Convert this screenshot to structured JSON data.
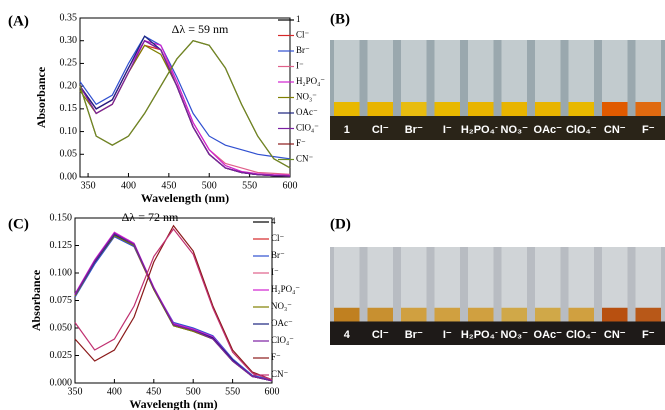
{
  "chart_data": [
    {
      "type": "line",
      "panel_label": "(A)",
      "annotation": "Δλ = 59 nm",
      "x_label": "Wavelength (nm)",
      "y_label": "Absorbance",
      "x": [
        340,
        360,
        380,
        400,
        420,
        440,
        460,
        480,
        500,
        520,
        540,
        560,
        580,
        600
      ],
      "xlim": [
        340,
        600
      ],
      "xticks": [
        350,
        400,
        450,
        500,
        550,
        600
      ],
      "ylim": [
        0,
        0.35
      ],
      "yticks": [
        {
          "value": 0,
          "label": "0.00"
        },
        {
          "value": 0.05,
          "label": "0.05"
        },
        {
          "value": 0.1,
          "label": "0.10"
        },
        {
          "value": 0.15,
          "label": "0.15"
        },
        {
          "value": 0.2,
          "label": "0.20"
        },
        {
          "value": 0.25,
          "label": "0.25"
        },
        {
          "value": 0.3,
          "label": "0.30"
        },
        {
          "value": 0.35,
          "label": "0.35"
        }
      ],
      "series": [
        {
          "name": "1",
          "color": "#000000",
          "values": [
            0.2,
            0.15,
            0.17,
            0.24,
            0.3,
            0.28,
            0.2,
            0.11,
            0.05,
            0.02,
            0.01,
            0.005,
            0.003,
            0.002
          ]
        },
        {
          "name": "Cl⁻",
          "color": "#d62728",
          "values": [
            0.2,
            0.14,
            0.16,
            0.23,
            0.29,
            0.28,
            0.2,
            0.11,
            0.05,
            0.02,
            0.01,
            0.006,
            0.004,
            0.003
          ]
        },
        {
          "name": "Br⁻",
          "color": "#3050d0",
          "values": [
            0.21,
            0.16,
            0.18,
            0.25,
            0.31,
            0.29,
            0.22,
            0.14,
            0.09,
            0.07,
            0.06,
            0.05,
            0.045,
            0.04
          ]
        },
        {
          "name": "I⁻",
          "color": "#e0608a",
          "values": [
            0.2,
            0.15,
            0.17,
            0.24,
            0.3,
            0.28,
            0.21,
            0.12,
            0.06,
            0.03,
            0.02,
            0.01,
            0.008,
            0.006
          ]
        },
        {
          "name": "H₂PO₄⁻",
          "color": "#d020d0",
          "values": [
            0.2,
            0.15,
            0.17,
            0.24,
            0.3,
            0.29,
            0.21,
            0.12,
            0.06,
            0.025,
            0.012,
            0.007,
            0.005,
            0.004
          ]
        },
        {
          "name": "NO₃⁻",
          "color": "#808000",
          "values": [
            0.19,
            0.14,
            0.16,
            0.23,
            0.29,
            0.27,
            0.2,
            0.11,
            0.05,
            0.02,
            0.01,
            0.005,
            0.003,
            0.002
          ]
        },
        {
          "name": "OAc⁻",
          "color": "#1a237e",
          "values": [
            0.2,
            0.15,
            0.17,
            0.24,
            0.31,
            0.28,
            0.2,
            0.11,
            0.05,
            0.02,
            0.01,
            0.005,
            0.003,
            0.002
          ]
        },
        {
          "name": "ClO₄⁻",
          "color": "#7b1fa2",
          "values": [
            0.2,
            0.14,
            0.16,
            0.23,
            0.3,
            0.28,
            0.2,
            0.11,
            0.05,
            0.02,
            0.01,
            0.005,
            0.003,
            0.002
          ]
        },
        {
          "name": "F⁻",
          "color": "#8b1a1a",
          "values": [
            0.2,
            0.09,
            0.07,
            0.09,
            0.14,
            0.2,
            0.26,
            0.3,
            0.29,
            0.24,
            0.16,
            0.09,
            0.04,
            0.02
          ]
        },
        {
          "name": "CN⁻",
          "color": "#6b8e23",
          "values": [
            0.2,
            0.09,
            0.07,
            0.09,
            0.14,
            0.2,
            0.26,
            0.3,
            0.29,
            0.24,
            0.16,
            0.09,
            0.04,
            0.02
          ]
        }
      ]
    },
    {
      "type": "line",
      "panel_label": "(C)",
      "annotation": "Δλ = 72 nm",
      "x_label": "Wavelength (nm)",
      "y_label": "Absorbance",
      "x": [
        350,
        375,
        400,
        425,
        450,
        475,
        500,
        525,
        550,
        575,
        600
      ],
      "xlim": [
        350,
        600
      ],
      "xticks": [
        350,
        400,
        450,
        500,
        550,
        600
      ],
      "ylim": [
        0,
        0.15
      ],
      "yticks": [
        {
          "value": 0,
          "label": "0.000"
        },
        {
          "value": 0.025,
          "label": "0.025"
        },
        {
          "value": 0.05,
          "label": "0.050"
        },
        {
          "value": 0.075,
          "label": "0.075"
        },
        {
          "value": 0.1,
          "label": "0.100"
        },
        {
          "value": 0.125,
          "label": "0.125"
        },
        {
          "value": 0.15,
          "label": "0.150"
        }
      ],
      "series": [
        {
          "name": "4",
          "color": "#000000",
          "values": [
            0.08,
            0.11,
            0.135,
            0.125,
            0.085,
            0.052,
            0.047,
            0.04,
            0.02,
            0.006,
            0.002
          ]
        },
        {
          "name": "Cl⁻",
          "color": "#d62728",
          "values": [
            0.079,
            0.109,
            0.134,
            0.124,
            0.085,
            0.053,
            0.048,
            0.041,
            0.021,
            0.006,
            0.002
          ]
        },
        {
          "name": "Br⁻",
          "color": "#3050d0",
          "values": [
            0.078,
            0.108,
            0.133,
            0.124,
            0.086,
            0.055,
            0.05,
            0.043,
            0.022,
            0.007,
            0.003
          ]
        },
        {
          "name": "I⁻",
          "color": "#e0608a",
          "values": [
            0.08,
            0.111,
            0.136,
            0.126,
            0.086,
            0.053,
            0.048,
            0.041,
            0.021,
            0.006,
            0.002
          ]
        },
        {
          "name": "H₂PO₄⁻",
          "color": "#d020d0",
          "values": [
            0.081,
            0.112,
            0.137,
            0.127,
            0.087,
            0.054,
            0.049,
            0.042,
            0.021,
            0.006,
            0.002
          ]
        },
        {
          "name": "NO₃⁻",
          "color": "#808000",
          "values": [
            0.079,
            0.11,
            0.134,
            0.125,
            0.085,
            0.052,
            0.047,
            0.04,
            0.02,
            0.006,
            0.002
          ]
        },
        {
          "name": "OAc⁻",
          "color": "#1a237e",
          "values": [
            0.08,
            0.11,
            0.135,
            0.126,
            0.086,
            0.053,
            0.048,
            0.041,
            0.021,
            0.006,
            0.002
          ]
        },
        {
          "name": "ClO₄⁻",
          "color": "#7b1fa2",
          "values": [
            0.08,
            0.111,
            0.136,
            0.126,
            0.086,
            0.053,
            0.048,
            0.04,
            0.02,
            0.006,
            0.002
          ]
        },
        {
          "name": "F⁻",
          "color": "#8b1a1a",
          "values": [
            0.04,
            0.02,
            0.03,
            0.06,
            0.11,
            0.143,
            0.12,
            0.07,
            0.03,
            0.01,
            0.003
          ]
        },
        {
          "name": "CN⁻",
          "color": "#c03070",
          "values": [
            0.055,
            0.03,
            0.04,
            0.07,
            0.115,
            0.14,
            0.117,
            0.068,
            0.028,
            0.009,
            0.003
          ]
        }
      ]
    }
  ],
  "photos": [
    {
      "panel_label": "(B)",
      "labels": [
        "1",
        "Cl⁻",
        "Br⁻",
        "I⁻",
        "H₂PO₄⁻",
        "NO₃⁻",
        "OAc⁻",
        "ClO₄⁻",
        "CN⁻",
        "F⁻"
      ]
    },
    {
      "panel_label": "(D)",
      "labels": [
        "4",
        "Cl⁻",
        "Br⁻",
        "I⁻",
        "H₂PO₄⁻",
        "NO₃⁻",
        "OAc⁻",
        "ClO₄⁻",
        "CN⁻",
        "F⁻"
      ]
    }
  ]
}
